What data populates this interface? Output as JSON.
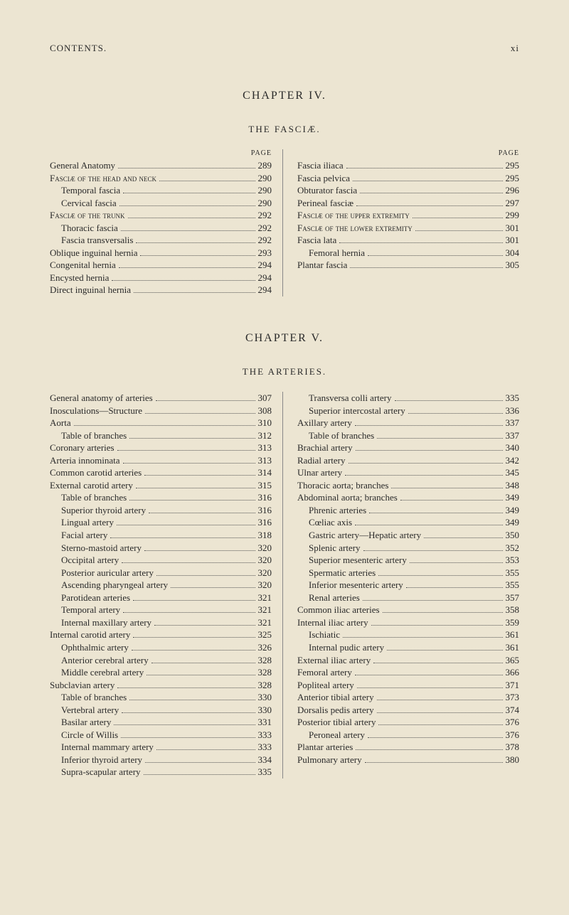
{
  "colors": {
    "background": "#ece5d2",
    "text": "#2a2a2a",
    "rule": "#888888"
  },
  "typography": {
    "base_fontsize": 13,
    "heading_fontsize": 16,
    "smallcaps_label_fontsize": 10,
    "letter_spacing_heading": 2
  },
  "header": {
    "left": "CONTENTS.",
    "right": "xi"
  },
  "chapter4": {
    "title": "CHAPTER IV.",
    "subtitle": "THE FASCIÆ.",
    "page_label": "PAGE",
    "left": [
      {
        "label": "General Anatomy",
        "page": "289",
        "indent": 0,
        "caps": false
      },
      {
        "label": "Fasciæ of the head and neck",
        "page": "290",
        "indent": 0,
        "caps": true
      },
      {
        "label": "Temporal fascia",
        "page": "290",
        "indent": 1,
        "caps": false
      },
      {
        "label": "Cervical fascia",
        "page": "290",
        "indent": 1,
        "caps": false
      },
      {
        "label": "Fasciæ of the trunk",
        "page": "292",
        "indent": 0,
        "caps": true
      },
      {
        "label": "Thoracic fascia",
        "page": "292",
        "indent": 1,
        "caps": false
      },
      {
        "label": "Fascia transversalis",
        "page": "292",
        "indent": 1,
        "caps": false
      },
      {
        "label": "Oblique inguinal hernia",
        "page": "293",
        "indent": 0,
        "caps": false
      },
      {
        "label": "Congenital hernia",
        "page": "294",
        "indent": 0,
        "caps": false
      },
      {
        "label": "Encysted hernia",
        "page": "294",
        "indent": 0,
        "caps": false
      },
      {
        "label": "Direct inguinal hernia",
        "page": "294",
        "indent": 0,
        "caps": false
      }
    ],
    "right": [
      {
        "label": "Fascia iliaca",
        "page": "295",
        "indent": 0,
        "caps": false
      },
      {
        "label": "Fascia pelvica",
        "page": "295",
        "indent": 0,
        "caps": false
      },
      {
        "label": "Obturator fascia",
        "page": "296",
        "indent": 0,
        "caps": false
      },
      {
        "label": "Perineal fasciæ",
        "page": "297",
        "indent": 0,
        "caps": false
      },
      {
        "label": "Fasciæ of the upper extremity",
        "page": "299",
        "indent": 0,
        "caps": true,
        "wrap": true,
        "wrapIndent": 2
      },
      {
        "label": "Fasciæ of the lower extremity",
        "page": "301",
        "indent": 0,
        "caps": true,
        "wrap": true,
        "wrapIndent": 2
      },
      {
        "label": "Fascia lata",
        "page": "301",
        "indent": 0,
        "caps": false
      },
      {
        "label": "Femoral hernia",
        "page": "304",
        "indent": 1,
        "caps": false
      },
      {
        "label": "Plantar fascia",
        "page": "305",
        "indent": 0,
        "caps": false
      }
    ]
  },
  "chapter5": {
    "title": "CHAPTER V.",
    "subtitle": "THE ARTERIES.",
    "page_label": "",
    "left": [
      {
        "label": "General anatomy of arteries",
        "page": "307",
        "indent": 0
      },
      {
        "label": "Inosculations—Structure",
        "page": "308",
        "indent": 0
      },
      {
        "label": "Aorta",
        "page": "310",
        "indent": 0
      },
      {
        "label": "Table of branches",
        "page": "312",
        "indent": 1
      },
      {
        "label": "Coronary arteries",
        "page": "313",
        "indent": 0
      },
      {
        "label": "Arteria innominata",
        "page": "313",
        "indent": 0
      },
      {
        "label": "Common carotid arteries",
        "page": "314",
        "indent": 0
      },
      {
        "label": "External carotid artery",
        "page": "315",
        "indent": 0
      },
      {
        "label": "Table of branches",
        "page": "316",
        "indent": 1
      },
      {
        "label": "Superior thyroid artery",
        "page": "316",
        "indent": 1
      },
      {
        "label": "Lingual artery",
        "page": "316",
        "indent": 1
      },
      {
        "label": "Facial artery",
        "page": "318",
        "indent": 1
      },
      {
        "label": "Sterno-mastoid artery",
        "page": "320",
        "indent": 1
      },
      {
        "label": "Occipital artery",
        "page": "320",
        "indent": 1
      },
      {
        "label": "Posterior auricular artery",
        "page": "320",
        "indent": 1
      },
      {
        "label": "Ascending pharyngeal artery",
        "page": "320",
        "indent": 1
      },
      {
        "label": "Parotidean arteries",
        "page": "321",
        "indent": 1
      },
      {
        "label": "Temporal artery",
        "page": "321",
        "indent": 1
      },
      {
        "label": "Internal maxillary artery",
        "page": "321",
        "indent": 1
      },
      {
        "label": "Internal carotid artery",
        "page": "325",
        "indent": 0
      },
      {
        "label": "Ophthalmic artery",
        "page": "326",
        "indent": 1
      },
      {
        "label": "Anterior cerebral artery",
        "page": "328",
        "indent": 1
      },
      {
        "label": "Middle cerebral artery",
        "page": "328",
        "indent": 1
      },
      {
        "label": "Subclavian artery",
        "page": "328",
        "indent": 0
      },
      {
        "label": "Table of branches",
        "page": "330",
        "indent": 1
      },
      {
        "label": "Vertebral artery",
        "page": "330",
        "indent": 1
      },
      {
        "label": "Basilar artery",
        "page": "331",
        "indent": 1
      },
      {
        "label": "Circle of Willis",
        "page": "333",
        "indent": 1
      },
      {
        "label": "Internal mammary artery",
        "page": "333",
        "indent": 1
      },
      {
        "label": "Inferior thyroid artery",
        "page": "334",
        "indent": 1
      },
      {
        "label": "Supra-scapular artery",
        "page": "335",
        "indent": 1
      }
    ],
    "right": [
      {
        "label": "Transversa colli artery",
        "page": "335",
        "indent": 1
      },
      {
        "label": "Superior intercostal artery",
        "page": "336",
        "indent": 1
      },
      {
        "label": "Axillary artery",
        "page": "337",
        "indent": 0
      },
      {
        "label": "Table of branches",
        "page": "337",
        "indent": 1
      },
      {
        "label": "Brachial artery",
        "page": "340",
        "indent": 0
      },
      {
        "label": "Radial artery",
        "page": "342",
        "indent": 0
      },
      {
        "label": "Ulnar artery",
        "page": "345",
        "indent": 0
      },
      {
        "label": "Thoracic aorta; branches",
        "page": "348",
        "indent": 0
      },
      {
        "label": "Abdominal aorta; branches",
        "page": "349",
        "indent": 0
      },
      {
        "label": "Phrenic arteries",
        "page": "349",
        "indent": 1
      },
      {
        "label": "Cœliac axis",
        "page": "349",
        "indent": 1
      },
      {
        "label": "Gastric artery—Hepatic artery",
        "page": "350",
        "indent": 1
      },
      {
        "label": "Splenic artery",
        "page": "352",
        "indent": 1
      },
      {
        "label": "Superior mesenteric artery",
        "page": "353",
        "indent": 1
      },
      {
        "label": "Spermatic arteries",
        "page": "355",
        "indent": 1
      },
      {
        "label": "Inferior mesenteric artery",
        "page": "355",
        "indent": 1
      },
      {
        "label": "Renal arteries",
        "page": "357",
        "indent": 1
      },
      {
        "label": "Common iliac arteries",
        "page": "358",
        "indent": 0
      },
      {
        "label": "Internal iliac artery",
        "page": "359",
        "indent": 0
      },
      {
        "label": "Ischiatic",
        "page": "361",
        "indent": 1
      },
      {
        "label": "Internal pudic artery",
        "page": "361",
        "indent": 1
      },
      {
        "label": "External iliac artery",
        "page": "365",
        "indent": 0
      },
      {
        "label": "Femoral artery",
        "page": "366",
        "indent": 0
      },
      {
        "label": "Popliteal artery",
        "page": "371",
        "indent": 0
      },
      {
        "label": "Anterior tibial artery",
        "page": "373",
        "indent": 0
      },
      {
        "label": "Dorsalis pedis artery",
        "page": "374",
        "indent": 0
      },
      {
        "label": "Posterior tibial artery",
        "page": "376",
        "indent": 0
      },
      {
        "label": "Peroneal artery",
        "page": "376",
        "indent": 1
      },
      {
        "label": "Plantar arteries",
        "page": "378",
        "indent": 0
      },
      {
        "label": "Pulmonary artery",
        "page": "380",
        "indent": 0
      }
    ]
  }
}
